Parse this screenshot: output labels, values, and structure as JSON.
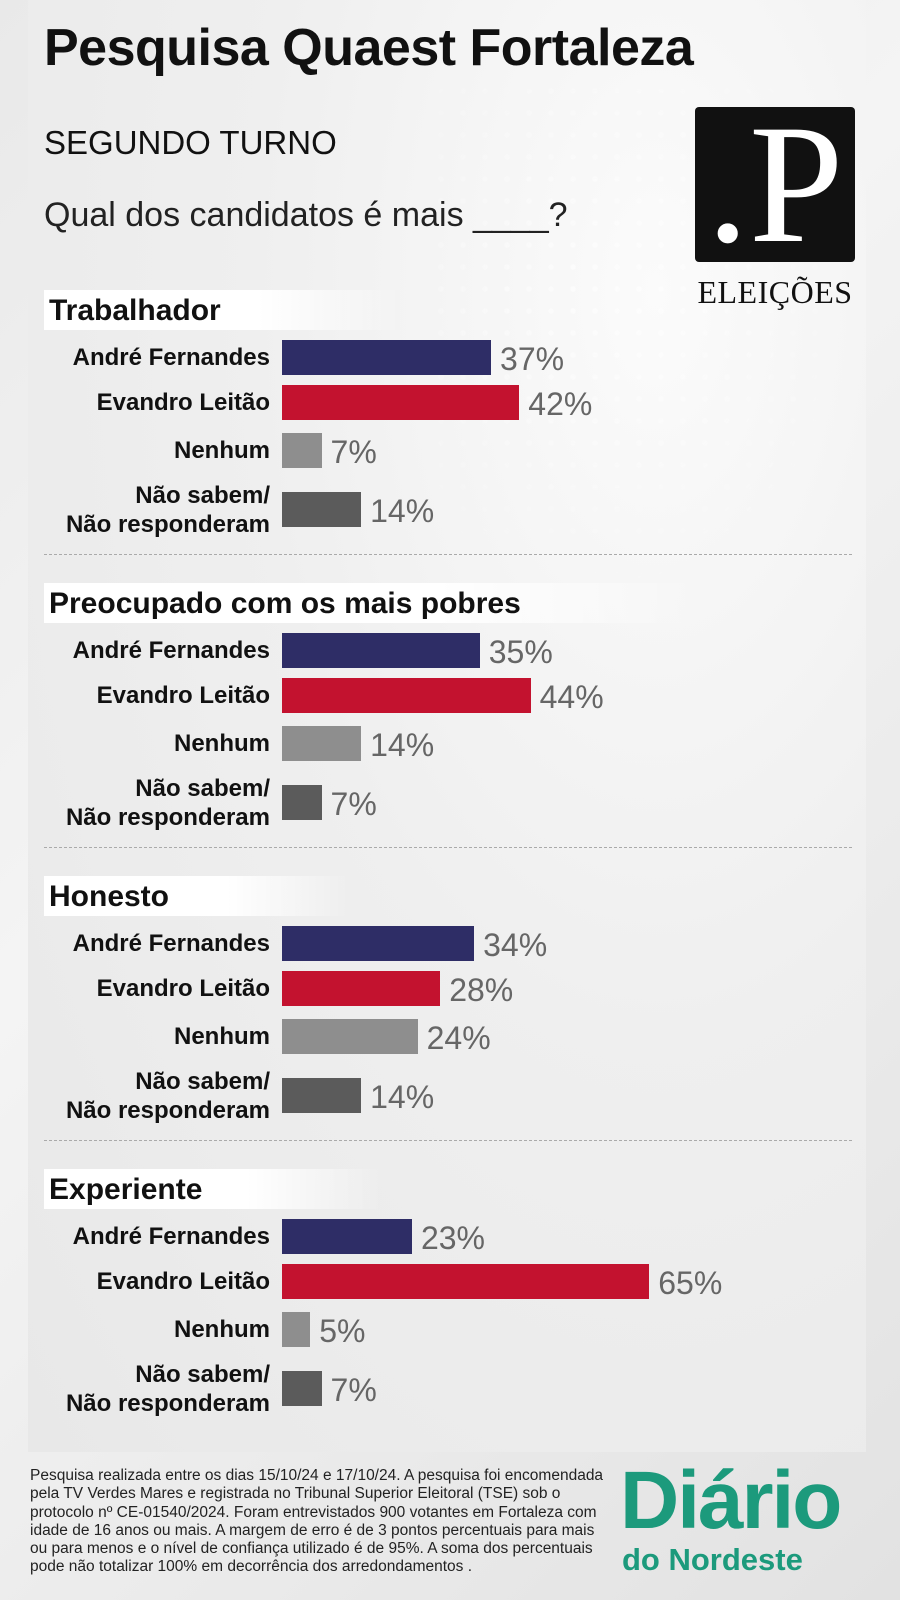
{
  "header": {
    "title": "Pesquisa Quaest Fortaleza",
    "subtitle": "SEGUNDO TURNO",
    "question": "Qual dos candidatos é mais ____?"
  },
  "logo": {
    "mark": ".P",
    "label": "ELEIÇÕES"
  },
  "colors": {
    "andre": "#2e2d66",
    "evandro": "#c3122f",
    "nenhum": "#8e8e8e",
    "nao_sabem": "#5b5b5b",
    "brand": "#1c9a7c"
  },
  "chart_data": {
    "type": "bar",
    "orientation": "horizontal",
    "categories": [
      "André Fernandes",
      "Evandro Leitão",
      "Nenhum",
      "Não sabem/ Não responderam"
    ],
    "category_lines": [
      [
        "André Fernandes"
      ],
      [
        "Evandro Leitão"
      ],
      [
        "Nenhum"
      ],
      [
        "Não sabem/",
        "Não responderam"
      ]
    ],
    "unit": "%",
    "groups": [
      {
        "title": "Trabalhador",
        "values": [
          37,
          42,
          7,
          14
        ],
        "labels": [
          "37%",
          "42%",
          "7%",
          "14%"
        ]
      },
      {
        "title": "Preocupado com os mais pobres",
        "values": [
          35,
          44,
          14,
          7
        ],
        "labels": [
          "35%",
          "44%",
          "14%",
          "7%"
        ]
      },
      {
        "title": "Honesto",
        "values": [
          34,
          28,
          24,
          14
        ],
        "labels": [
          "34%",
          "28%",
          "24%",
          "14%"
        ]
      },
      {
        "title": "Experiente",
        "values": [
          23,
          65,
          5,
          7
        ],
        "labels": [
          "23%",
          "65%",
          "5%",
          "7%"
        ]
      }
    ]
  },
  "footer": {
    "note": "Pesquisa realizada entre os dias 15/10/24 e  17/10/24. A pesquisa foi encomendada pela TV Verdes Mares e registrada no Tribunal Superior Eleitoral (TSE) sob o protocolo nº CE-01540/2024. Foram entrevistados 900 votantes em Fortaleza com idade de 16 anos ou mais. A margem de erro é de 3 pontos percentuais para mais ou para menos e o nível de confiança utilizado é de 95%. A soma dos percentuais pode não totalizar 100% em decorrência dos arredondamentos .",
    "brand_line1": "Diário",
    "brand_line2": "do Nordeste"
  }
}
